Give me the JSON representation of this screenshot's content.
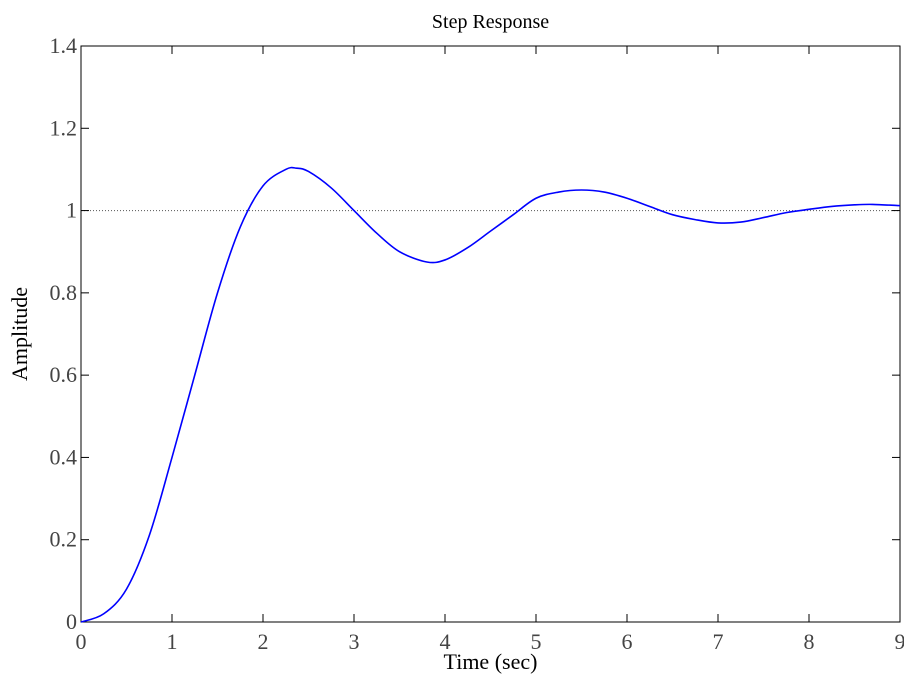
{
  "chart_data": {
    "type": "line",
    "title": "Step Response",
    "xlabel": "Time (sec)",
    "ylabel": "Amplitude",
    "xlim": [
      0,
      9
    ],
    "ylim": [
      0,
      1.4
    ],
    "xticks": [
      0,
      1,
      2,
      3,
      4,
      5,
      6,
      7,
      8,
      9
    ],
    "yticks": [
      0,
      0.2,
      0.4,
      0.6,
      0.8,
      1,
      1.2,
      1.4
    ],
    "xtick_labels": [
      "0",
      "1",
      "2",
      "3",
      "4",
      "5",
      "6",
      "7",
      "8",
      "9"
    ],
    "ytick_labels": [
      "0",
      "0.2",
      "0.4",
      "0.6",
      "0.8",
      "1",
      "1.2",
      "1.4"
    ],
    "grid": false,
    "reference_line": {
      "y": 1,
      "style": "dotted",
      "color": "#555555"
    },
    "series": [
      {
        "color": "#0000ff",
        "x": [
          0,
          0.25,
          0.5,
          0.75,
          1.0,
          1.25,
          1.5,
          1.75,
          2.0,
          2.25,
          2.37,
          2.5,
          2.75,
          3.0,
          3.25,
          3.5,
          3.8,
          4.0,
          4.25,
          4.5,
          4.75,
          5.0,
          5.25,
          5.5,
          5.75,
          6.0,
          6.25,
          6.5,
          6.75,
          7.0,
          7.25,
          7.5,
          7.75,
          8.0,
          8.25,
          8.5,
          8.7,
          9.0
        ],
        "y": [
          0,
          0.02,
          0.08,
          0.21,
          0.4,
          0.6,
          0.8,
          0.96,
          1.06,
          1.1,
          1.103,
          1.095,
          1.055,
          1.0,
          0.945,
          0.9,
          0.875,
          0.88,
          0.91,
          0.95,
          0.99,
          1.03,
          1.045,
          1.05,
          1.045,
          1.03,
          1.01,
          0.99,
          0.978,
          0.97,
          0.972,
          0.983,
          0.995,
          1.003,
          1.01,
          1.014,
          1.015,
          1.012
        ]
      }
    ]
  }
}
